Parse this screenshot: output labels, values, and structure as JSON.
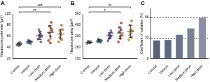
{
  "chart_data": [
    {
      "type": "scatter",
      "title": "A",
      "y_label": "Hepatocyte perimeter (μm)",
      "categories": [
        "Control",
        "Vehicle",
        "Low dose",
        "Medium dose",
        "High dose"
      ],
      "colors": [
        "#9e9e9e",
        "#5b9bd5",
        "#9b6fd0",
        "#e8543a",
        "#f0b323"
      ],
      "points": [
        [
          44,
          46,
          48,
          45,
          47,
          43,
          49,
          46
        ],
        [
          48,
          52,
          50,
          47,
          53,
          51,
          49,
          50
        ],
        [
          55,
          62,
          68,
          50,
          72,
          58,
          64,
          60
        ],
        [
          52,
          78,
          60,
          85,
          66,
          48,
          74,
          70
        ],
        [
          50,
          70,
          62,
          80,
          58,
          66,
          54,
          72
        ]
      ],
      "mean": [
        46,
        50,
        61,
        67,
        64
      ],
      "sd": [
        2,
        2,
        7,
        12,
        9
      ],
      "ylim": [
        20,
        100
      ],
      "yticks": [
        20,
        40,
        60,
        80,
        100
      ],
      "grid": false,
      "annotations": [
        {
          "from": "Control",
          "to": "Medium dose",
          "label": "**"
        },
        {
          "from": "Control",
          "to": "High dose",
          "label": "***"
        }
      ]
    },
    {
      "type": "scatter",
      "title": "B",
      "y_label": "Hepatocyte area (μm²)",
      "categories": [
        "Control",
        "Vehicle",
        "Low dose",
        "Medium dose",
        "High dose"
      ],
      "colors": [
        "#9e9e9e",
        "#5b9bd5",
        "#9b6fd0",
        "#e8543a",
        "#f0b323"
      ],
      "points": [
        [
          235,
          245,
          250,
          240,
          255,
          248,
          242,
          252
        ],
        [
          250,
          270,
          260,
          245,
          275,
          265,
          255,
          262
        ],
        [
          260,
          320,
          290,
          350,
          280,
          310,
          300,
          330
        ],
        [
          250,
          380,
          300,
          420,
          340,
          280,
          360,
          310
        ],
        [
          270,
          400,
          330,
          440,
          310,
          360,
          290,
          350
        ]
      ],
      "mean": [
        246,
        260,
        305,
        330,
        344
      ],
      "sd": [
        7,
        10,
        28,
        53,
        54
      ],
      "ylim": [
        100,
        500
      ],
      "yticks": [
        100,
        200,
        300,
        400,
        500
      ],
      "grid": false,
      "annotations": [
        {
          "from": "Control",
          "to": "Medium dose",
          "label": "*"
        },
        {
          "from": "Control",
          "to": "High dose",
          "label": "**"
        }
      ]
    },
    {
      "type": "bar",
      "title": "C",
      "y_label": "Coefficient of variation (%)",
      "categories": [
        "Control",
        "Vehicle",
        "Low dose",
        "Medium dose",
        "High dose"
      ],
      "values": [
        29,
        30,
        38,
        48,
        65
      ],
      "colors": [
        "#5a6678",
        "#5a6a80",
        "#6a7488",
        "#7a8296",
        "#8a90a6"
      ],
      "ylim": [
        0,
        80
      ],
      "yticks": [
        0,
        33,
        66
      ],
      "grid": true
    }
  ]
}
